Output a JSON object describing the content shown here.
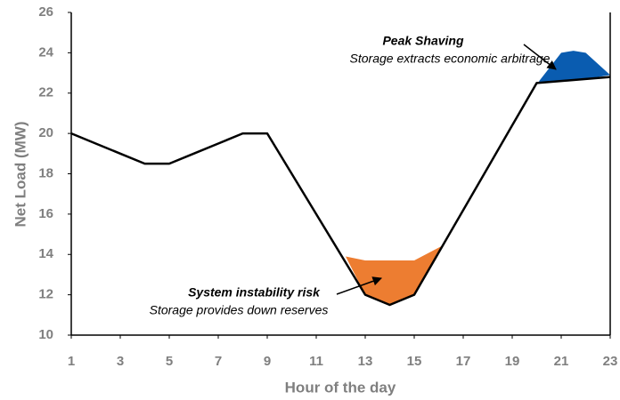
{
  "chart_data": {
    "type": "line",
    "x_label": "Hour of the day",
    "y_label": "Net Load (MW)",
    "x": [
      1,
      2,
      3,
      4,
      5,
      6,
      7,
      8,
      9,
      10,
      11,
      12,
      13,
      14,
      15,
      16,
      17,
      18,
      19,
      20,
      21,
      22,
      23
    ],
    "series": [
      {
        "name": "Net Load",
        "color": "#000000",
        "values": [
          20,
          19.5,
          19,
          18.5,
          18.5,
          19,
          19.5,
          20,
          20,
          18,
          16,
          14,
          12,
          11.5,
          12,
          14.1,
          16.2,
          18.3,
          20.4,
          22.5,
          22.6,
          22.7,
          22.8
        ]
      }
    ],
    "areas": [
      {
        "color": "#ed7d31",
        "x": [
          12.2,
          13,
          14,
          15,
          16.1
        ],
        "upper": [
          13.9,
          13.7,
          13.7,
          13.7,
          14.4
        ],
        "lower": [
          13.9,
          12,
          11.5,
          12,
          14.4
        ]
      },
      {
        "color": "#0a5cb0",
        "x": [
          20.1,
          21,
          21.5,
          22,
          23
        ],
        "upper": [
          22.6,
          24,
          24.1,
          24,
          22.9
        ],
        "lower": [
          22.5,
          22.6,
          22.65,
          22.7,
          22.9
        ]
      }
    ],
    "annotations": [
      {
        "title": "Peak Shaving",
        "text": "Storage extracts economic arbitrage"
      },
      {
        "title": "System instability risk",
        "text": "Storage provides down reserves"
      }
    ],
    "xlim": [
      1,
      23
    ],
    "ylim": [
      10,
      26
    ],
    "xticks": [
      1,
      3,
      5,
      7,
      9,
      11,
      13,
      15,
      17,
      19,
      21,
      23
    ],
    "yticks": [
      10,
      12,
      14,
      16,
      18,
      20,
      22,
      24,
      26
    ]
  }
}
